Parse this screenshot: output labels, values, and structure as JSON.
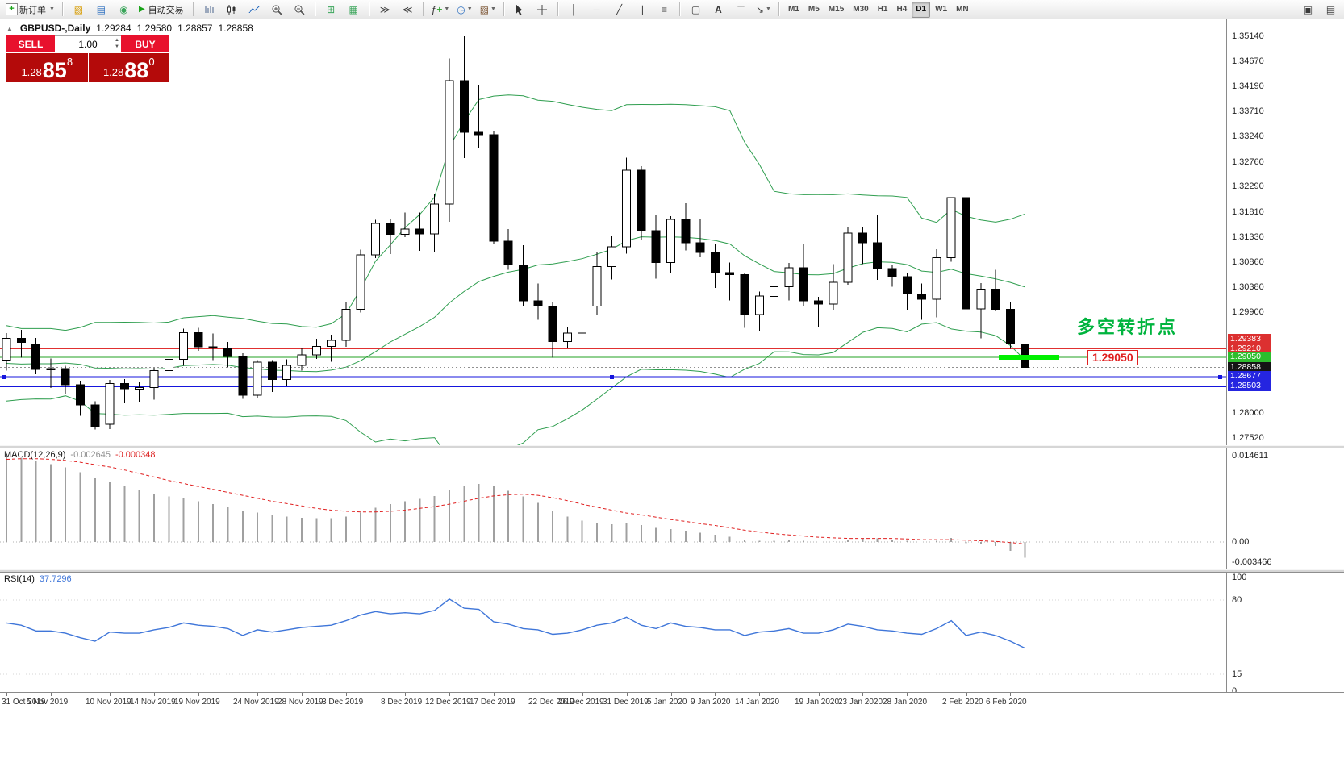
{
  "toolbar": {
    "new_order_label": "新订单",
    "auto_trading_label": "自动交易",
    "timeframes": [
      "M1",
      "M5",
      "M15",
      "M30",
      "H1",
      "H4",
      "D1",
      "W1",
      "MN"
    ],
    "active_timeframe": "D1"
  },
  "chart": {
    "symbol_title": "GBPUSD-,Daily",
    "ohlc": {
      "open": "1.29284",
      "high": "1.29580",
      "low": "1.28857",
      "close": "1.28858"
    },
    "one_click": {
      "sell_label": "SELL",
      "buy_label": "BUY",
      "volume": "1.00",
      "sell_price_head": "1.28",
      "sell_price_big": "85",
      "sell_price_sup": "8",
      "buy_price_head": "1.28",
      "buy_price_big": "88",
      "buy_price_sup": "0"
    },
    "annotation_text": "多空转折点",
    "level_label": "1.29050",
    "price_axis_labels": [
      1.3514,
      1.3467,
      1.3419,
      1.3371,
      1.3324,
      1.3276,
      1.3229,
      1.3181,
      1.3133,
      1.3086,
      1.3038,
      1.299,
      1.28,
      1.2752
    ],
    "badges": [
      {
        "text": "1.29383",
        "price": 1.29383,
        "bg": "#dc3030",
        "fg": "#ffffff"
      },
      {
        "text": "1.29210",
        "price": 1.2921,
        "bg": "#dc3030",
        "fg": "#ffffff"
      },
      {
        "text": "1.29050",
        "price": 1.2905,
        "bg": "#2dbe2d",
        "fg": "#ffffff"
      },
      {
        "text": "1.28858",
        "price": 1.28858,
        "bg": "#151515",
        "fg": "#ffffff"
      },
      {
        "text": "1.28677",
        "price": 1.28677,
        "bg": "#2525e0",
        "fg": "#ffffff"
      },
      {
        "text": "1.28503",
        "price": 1.28503,
        "bg": "#2525e0",
        "fg": "#ffffff"
      }
    ],
    "hlines": [
      {
        "price": 1.29383,
        "color": "#e03030",
        "width": 1,
        "style": "solid"
      },
      {
        "price": 1.2921,
        "color": "#e03030",
        "width": 1,
        "style": "solid"
      },
      {
        "price": 1.2905,
        "color": "#20a020",
        "width": 1,
        "style": "solid"
      },
      {
        "price": 1.28858,
        "color": "#909090",
        "width": 1,
        "style": "dotted"
      },
      {
        "price": 1.28677,
        "color": "#1515dd",
        "width": 2,
        "style": "solid"
      },
      {
        "price": 1.28503,
        "color": "#1515dd",
        "width": 2,
        "style": "solid"
      }
    ],
    "highlight": {
      "price": 1.2905,
      "from_index": 67.2,
      "to_index": 71.3,
      "color": "#00f000"
    }
  },
  "macd_panel": {
    "name": "MACD(12,26,9)",
    "value_main": "-0.002645",
    "value_signal": "-0.000348",
    "scale": [
      {
        "v": 0.014611,
        "t": "0.014611"
      },
      {
        "v": 0,
        "t": "0.00"
      },
      {
        "v": -0.003466,
        "t": "-0.003466"
      }
    ]
  },
  "rsi_panel": {
    "name": "RSI(14)",
    "value": "37.7296",
    "scale": [
      {
        "v": 100,
        "t": "100"
      },
      {
        "v": 80,
        "t": "80"
      },
      {
        "v": 15,
        "t": "15"
      },
      {
        "v": 0,
        "t": "0"
      }
    ]
  },
  "time_axis": {
    "ticks": [
      {
        "i": 0,
        "label": "31 Oct 2019"
      },
      {
        "i": 3,
        "label": "5 Nov 2019"
      },
      {
        "i": 7,
        "label": "10 Nov 2019"
      },
      {
        "i": 10,
        "label": "14 Nov 2019"
      },
      {
        "i": 13,
        "label": "19 Nov 2019"
      },
      {
        "i": 17,
        "label": "24 Nov 2019"
      },
      {
        "i": 20,
        "label": "28 Nov 2019"
      },
      {
        "i": 23,
        "label": "3 Dec 2019"
      },
      {
        "i": 27,
        "label": "8 Dec 2019"
      },
      {
        "i": 30,
        "label": "12 Dec 2019"
      },
      {
        "i": 33,
        "label": "17 Dec 2019"
      },
      {
        "i": 37,
        "label": "22 Dec 2019"
      },
      {
        "i": 39,
        "label": "26 Dec 2019"
      },
      {
        "i": 42,
        "label": "31 Dec 2019"
      },
      {
        "i": 45,
        "label": "5 Jan 2020"
      },
      {
        "i": 48,
        "label": "9 Jan 2020"
      },
      {
        "i": 51,
        "label": "14 Jan 2020"
      },
      {
        "i": 55,
        "label": "19 Jan 2020"
      },
      {
        "i": 58,
        "label": "23 Jan 2020"
      },
      {
        "i": 61,
        "label": "28 Jan 2020"
      },
      {
        "i": 65,
        "label": "2 Feb 2020"
      },
      {
        "i": 68,
        "label": "6 Feb 2020"
      }
    ]
  },
  "chart_data": {
    "type": "candlestick",
    "symbol": "GBPUSD-",
    "timeframe": "Daily",
    "price_range": {
      "top": 1.35461,
      "bottom": 1.27383
    },
    "candles": [
      [
        1.29,
        1.2951,
        1.288,
        1.2941
      ],
      [
        1.2941,
        1.2957,
        1.2904,
        1.2933
      ],
      [
        1.2929,
        1.2942,
        1.2873,
        1.2882
      ],
      [
        1.2882,
        1.2903,
        1.2847,
        1.2884
      ],
      [
        1.2884,
        1.2889,
        1.2835,
        1.2853
      ],
      [
        1.2853,
        1.2861,
        1.2794,
        1.2815
      ],
      [
        1.2815,
        1.2822,
        1.2768,
        1.2773
      ],
      [
        1.2778,
        1.2862,
        1.2769,
        1.2855
      ],
      [
        1.2855,
        1.2864,
        1.2818,
        1.2845
      ],
      [
        1.2845,
        1.2858,
        1.282,
        1.2848
      ],
      [
        1.2848,
        1.2885,
        1.2825,
        1.288
      ],
      [
        1.288,
        1.2915,
        1.2867,
        1.2901
      ],
      [
        1.2901,
        1.2959,
        1.2889,
        1.2952
      ],
      [
        1.2952,
        1.2961,
        1.2917,
        1.2925
      ],
      [
        1.2925,
        1.295,
        1.29,
        1.2923
      ],
      [
        1.2923,
        1.2934,
        1.2886,
        1.2907
      ],
      [
        1.2907,
        1.2913,
        1.2826,
        1.2833
      ],
      [
        1.2833,
        1.29,
        1.2827,
        1.2896
      ],
      [
        1.2896,
        1.29,
        1.2839,
        1.2863
      ],
      [
        1.2863,
        1.2901,
        1.285,
        1.289
      ],
      [
        1.289,
        1.2922,
        1.288,
        1.291
      ],
      [
        1.291,
        1.294,
        1.2902,
        1.2926
      ],
      [
        1.2926,
        1.2948,
        1.2897,
        1.2937
      ],
      [
        1.2937,
        1.3009,
        1.2925,
        1.2996
      ],
      [
        1.2996,
        1.3109,
        1.299,
        1.3099
      ],
      [
        1.3099,
        1.3166,
        1.3093,
        1.3159
      ],
      [
        1.3159,
        1.3167,
        1.3101,
        1.3138
      ],
      [
        1.3138,
        1.318,
        1.3133,
        1.3148
      ],
      [
        1.3148,
        1.318,
        1.3107,
        1.3139
      ],
      [
        1.3139,
        1.3215,
        1.3105,
        1.3196
      ],
      [
        1.3196,
        1.3472,
        1.3162,
        1.343
      ],
      [
        1.343,
        1.3514,
        1.3283,
        1.3332
      ],
      [
        1.3332,
        1.3422,
        1.3302,
        1.3327
      ],
      [
        1.3327,
        1.3335,
        1.312,
        1.3125
      ],
      [
        1.3125,
        1.3148,
        1.3071,
        1.308
      ],
      [
        1.308,
        1.3118,
        1.3003,
        1.3012
      ],
      [
        1.3012,
        1.3045,
        1.2976,
        1.3002
      ],
      [
        1.3002,
        1.3009,
        1.2904,
        1.2935
      ],
      [
        1.2935,
        1.2963,
        1.2922,
        1.2951
      ],
      [
        1.2951,
        1.3014,
        1.2946,
        1.3002
      ],
      [
        1.3002,
        1.3104,
        1.2986,
        1.3077
      ],
      [
        1.3077,
        1.3136,
        1.3053,
        1.3115
      ],
      [
        1.3115,
        1.3284,
        1.3102,
        1.326
      ],
      [
        1.326,
        1.3268,
        1.3127,
        1.3145
      ],
      [
        1.3145,
        1.3176,
        1.3054,
        1.3085
      ],
      [
        1.3085,
        1.3173,
        1.3064,
        1.3167
      ],
      [
        1.3167,
        1.3197,
        1.3108,
        1.3122
      ],
      [
        1.3122,
        1.3168,
        1.3095,
        1.3104
      ],
      [
        1.3104,
        1.312,
        1.3037,
        1.3066
      ],
      [
        1.3066,
        1.3085,
        1.3013,
        1.3062
      ],
      [
        1.3062,
        1.3066,
        1.2961,
        1.2986
      ],
      [
        1.2986,
        1.303,
        1.2955,
        1.3021
      ],
      [
        1.3021,
        1.3049,
        1.2985,
        1.3039
      ],
      [
        1.3039,
        1.3084,
        1.3013,
        1.3075
      ],
      [
        1.3075,
        1.3119,
        1.3002,
        1.3012
      ],
      [
        1.3012,
        1.302,
        1.2962,
        1.3006
      ],
      [
        1.3006,
        1.3082,
        1.2995,
        1.3047
      ],
      [
        1.3047,
        1.3153,
        1.3043,
        1.3141
      ],
      [
        1.3141,
        1.3151,
        1.3082,
        1.3122
      ],
      [
        1.3122,
        1.3175,
        1.3052,
        1.3073
      ],
      [
        1.3073,
        1.308,
        1.3039,
        1.3058
      ],
      [
        1.3058,
        1.3066,
        1.2995,
        1.3025
      ],
      [
        1.3025,
        1.3045,
        1.2976,
        1.3015
      ],
      [
        1.3015,
        1.311,
        1.2981,
        1.3094
      ],
      [
        1.3094,
        1.3209,
        1.3086,
        1.3208
      ],
      [
        1.3208,
        1.3214,
        1.2982,
        1.2997
      ],
      [
        1.2997,
        1.3046,
        1.2941,
        1.3034
      ],
      [
        1.3034,
        1.3071,
        1.2994,
        1.2996
      ],
      [
        1.2996,
        1.3009,
        1.2921,
        1.2932
      ],
      [
        1.29284,
        1.2958,
        1.28857,
        1.28858
      ]
    ],
    "pre_closes": [
      1.294,
      1.296,
      1.287,
      1.2885,
      1.2825,
      1.2863,
      1.291,
      1.2868,
      1.2862,
      1.2842,
      1.29,
      1.287,
      1.285,
      1.2905,
      1.2902,
      1.2933,
      1.2921,
      1.294,
      1.2922,
      1.2902
    ],
    "bollinger": {
      "period": 20,
      "deviation": 2,
      "color": "#2f9e4f"
    },
    "macd": {
      "histogram_color": "#a0a0a0",
      "signal_color": "#e02020",
      "range": {
        "max": 0.014611,
        "min": -0.003466
      },
      "hist": [
        0.014611,
        0.0143,
        0.0138,
        0.0132,
        0.0126,
        0.0118,
        0.0108,
        0.0102,
        0.0095,
        0.0088,
        0.0082,
        0.0077,
        0.0074,
        0.0069,
        0.0064,
        0.0059,
        0.0053,
        0.005,
        0.0046,
        0.0043,
        0.0041,
        0.004,
        0.004,
        0.0043,
        0.005,
        0.0058,
        0.0064,
        0.0069,
        0.0073,
        0.0078,
        0.0088,
        0.0095,
        0.0098,
        0.0094,
        0.0087,
        0.0077,
        0.0066,
        0.0053,
        0.0043,
        0.0036,
        0.0032,
        0.003,
        0.0032,
        0.0029,
        0.0024,
        0.0022,
        0.0019,
        0.0016,
        0.0012,
        0.0009,
        0.0004,
        0.0002,
        0.0002,
        0.0003,
        0.0002,
        0.0,
        0.0001,
        0.0004,
        0.0006,
        0.0006,
        0.0004,
        0.0002,
        0.0,
        0.0002,
        0.0007,
        -0.0002,
        -0.0004,
        -0.0007,
        -0.0015,
        -0.002645
      ],
      "signal": [
        0.014,
        0.0141,
        0.0141,
        0.014,
        0.0138,
        0.0135,
        0.0131,
        0.0127,
        0.0122,
        0.0116,
        0.011,
        0.0104,
        0.0099,
        0.0094,
        0.0089,
        0.0084,
        0.0079,
        0.0074,
        0.0069,
        0.0065,
        0.0061,
        0.0057,
        0.0054,
        0.0052,
        0.0051,
        0.0051,
        0.0052,
        0.0054,
        0.0057,
        0.006,
        0.0064,
        0.0069,
        0.0074,
        0.0078,
        0.008,
        0.0081,
        0.0079,
        0.0075,
        0.007,
        0.0064,
        0.0059,
        0.0054,
        0.0049,
        0.0046,
        0.0042,
        0.0038,
        0.0035,
        0.0031,
        0.0028,
        0.0024,
        0.002,
        0.0017,
        0.0014,
        0.0012,
        0.001,
        0.0008,
        0.0007,
        0.0006,
        0.0006,
        0.0006,
        0.0006,
        0.0005,
        0.0004,
        0.0004,
        0.0004,
        0.0003,
        0.0002,
        0.0001,
        -0.0001,
        -0.000348
      ]
    },
    "rsi": {
      "color": "#3f76d9",
      "range": {
        "max": 100,
        "min": 0
      },
      "values": [
        60,
        58,
        53,
        53,
        51,
        47,
        44,
        52,
        51,
        51,
        54,
        56,
        60,
        58,
        57,
        55,
        49,
        54,
        52,
        54,
        56,
        57,
        58,
        62,
        67,
        70,
        68,
        69,
        68,
        71,
        81,
        73,
        72,
        61,
        59,
        55,
        54,
        50,
        51,
        54,
        58,
        60,
        65,
        58,
        55,
        60,
        57,
        56,
        54,
        54,
        49,
        52,
        53,
        55,
        51,
        51,
        54,
        59,
        57,
        54,
        53,
        51,
        50,
        55,
        62,
        49,
        52,
        49,
        44,
        37.7296
      ]
    }
  }
}
